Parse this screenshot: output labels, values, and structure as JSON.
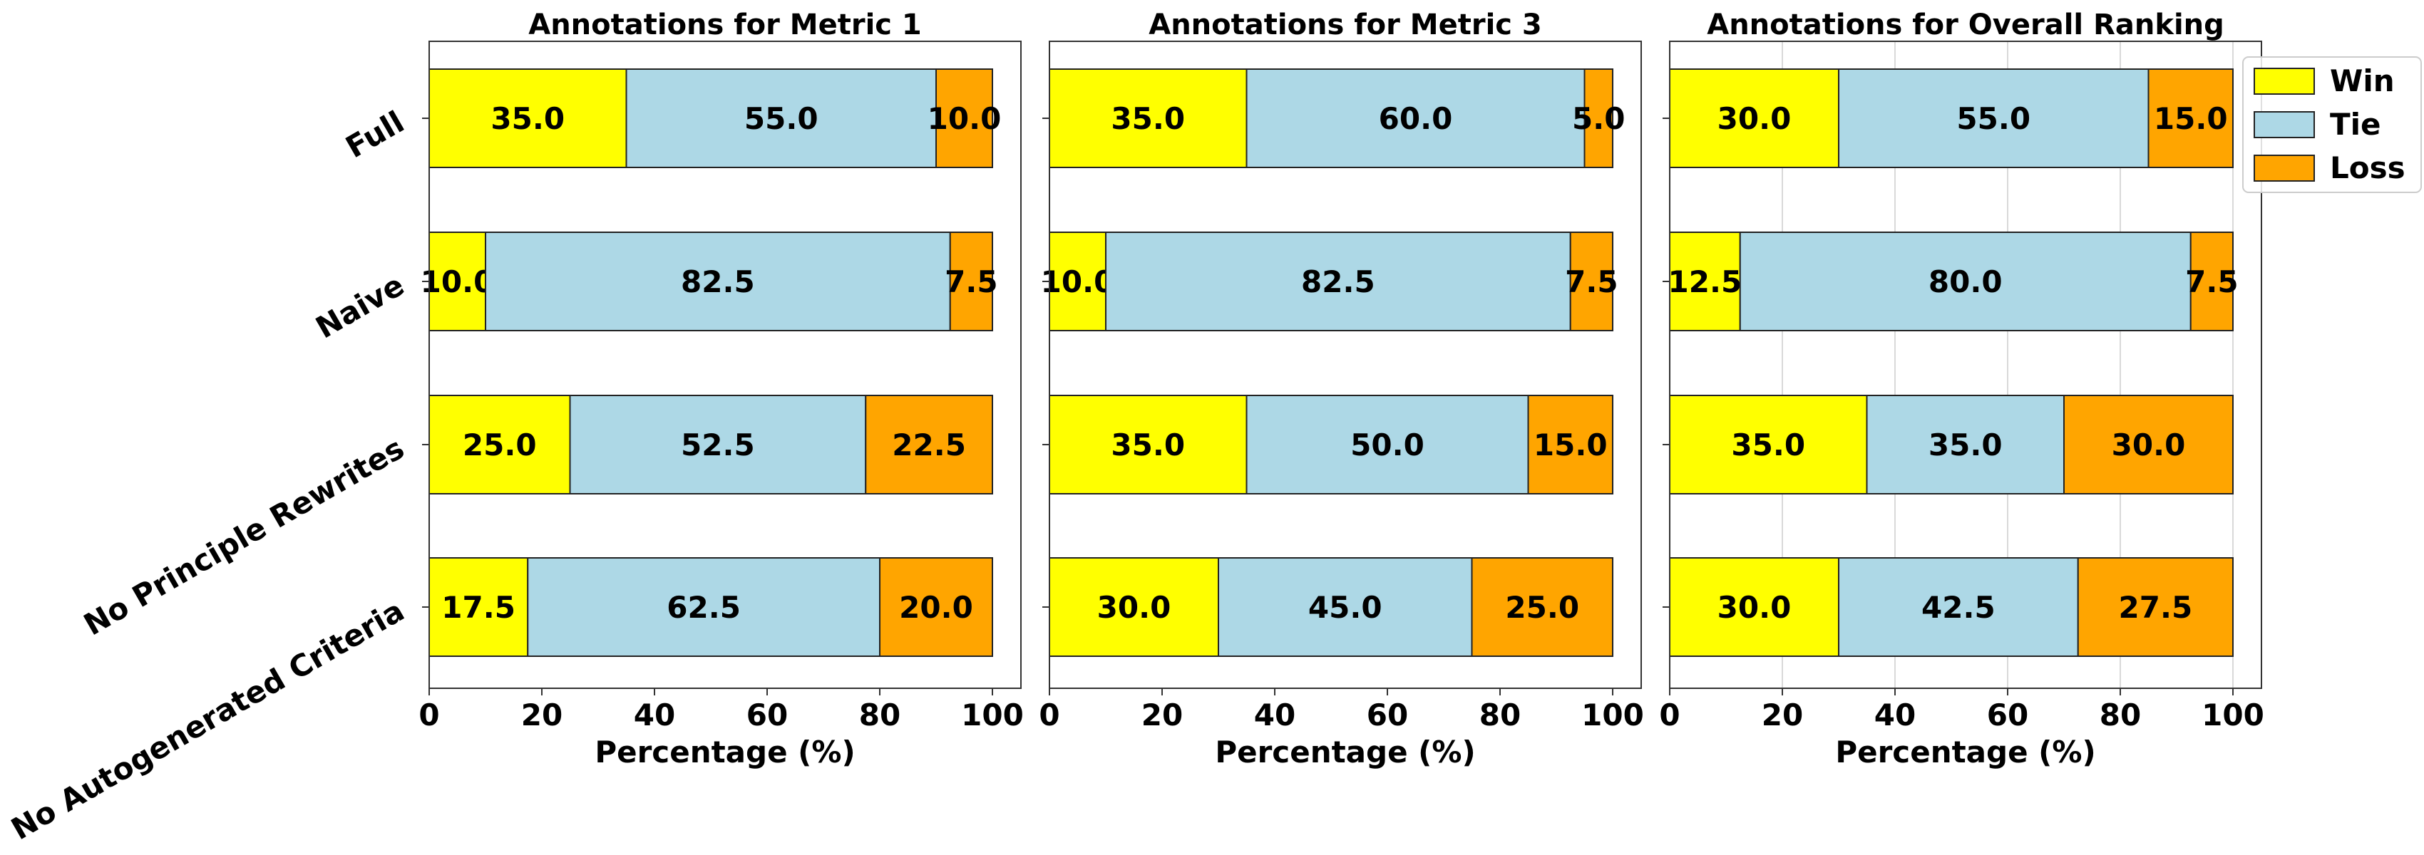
{
  "chart_data": {
    "type": "bar",
    "orientation": "horizontal",
    "stacked": true,
    "xlim": [
      0,
      100
    ],
    "xticks": [
      "0",
      "20",
      "40",
      "60",
      "80",
      "100"
    ],
    "categories": [
      "Full",
      "Naive",
      "No Principle Rewrites",
      "No Autogenerated Criteria"
    ],
    "legend": {
      "position": "top-right",
      "entries": [
        {
          "name": "Win",
          "color": "#ffff00"
        },
        {
          "name": "Tie",
          "color": "#add8e6"
        },
        {
          "name": "Loss",
          "color": "#ffa500"
        }
      ]
    },
    "panels": [
      {
        "title": "Annotations for Metric 1",
        "xlabel": "Percentage (%)",
        "grid": false,
        "series": [
          {
            "name": "Win",
            "values": [
              35.0,
              10.0,
              25.0,
              17.5
            ],
            "labels": [
              "35.0",
              "10.0",
              "25.0",
              "17.5"
            ]
          },
          {
            "name": "Tie",
            "values": [
              55.0,
              82.5,
              52.5,
              62.5
            ],
            "labels": [
              "55.0",
              "82.5",
              "52.5",
              "62.5"
            ]
          },
          {
            "name": "Loss",
            "values": [
              10.0,
              7.5,
              22.5,
              20.0
            ],
            "labels": [
              "10.0",
              "7.5",
              "22.5",
              "20.0"
            ]
          }
        ]
      },
      {
        "title": "Annotations for Metric 3",
        "xlabel": "Percentage (%)",
        "grid": false,
        "series": [
          {
            "name": "Win",
            "values": [
              35.0,
              10.0,
              35.0,
              30.0
            ],
            "labels": [
              "35.0",
              "10.0",
              "35.0",
              "30.0"
            ]
          },
          {
            "name": "Tie",
            "values": [
              60.0,
              82.5,
              50.0,
              45.0
            ],
            "labels": [
              "60.0",
              "82.5",
              "50.0",
              "45.0"
            ]
          },
          {
            "name": "Loss",
            "values": [
              5.0,
              7.5,
              15.0,
              25.0
            ],
            "labels": [
              "5.0",
              "7.5",
              "15.0",
              "25.0"
            ]
          }
        ]
      },
      {
        "title": "Annotations for Overall Ranking",
        "xlabel": "Percentage (%)",
        "grid": true,
        "series": [
          {
            "name": "Win",
            "values": [
              30.0,
              12.5,
              35.0,
              30.0
            ],
            "labels": [
              "30.0",
              "12.5",
              "35.0",
              "30.0"
            ]
          },
          {
            "name": "Tie",
            "values": [
              55.0,
              80.0,
              35.0,
              42.5
            ],
            "labels": [
              "55.0",
              "80.0",
              "35.0",
              "42.5"
            ]
          },
          {
            "name": "Loss",
            "values": [
              15.0,
              7.5,
              30.0,
              27.5
            ],
            "labels": [
              "15.0",
              "7.5",
              "30.0",
              "27.5"
            ]
          }
        ]
      }
    ]
  }
}
